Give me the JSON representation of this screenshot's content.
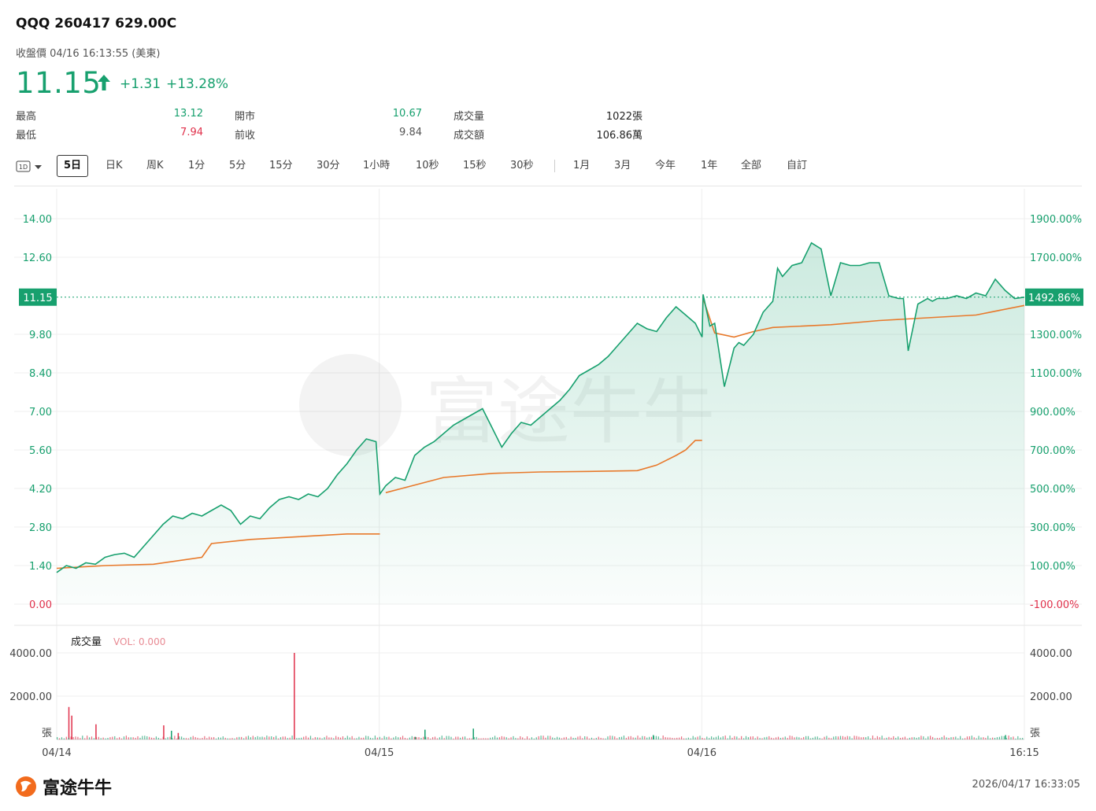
{
  "header": {
    "title": "QQQ 260417 629.00C",
    "subtitle": "收盤價 04/16 16:13:55 (美東)",
    "price": "11.15",
    "change": "+1.31",
    "change_pct": "+13.28%"
  },
  "stats": {
    "high_label": "最高",
    "high_value": "13.12",
    "low_label": "最低",
    "low_value": "7.94",
    "open_label": "開市",
    "open_value": "10.67",
    "prev_close_label": "前收",
    "prev_close_value": "9.84",
    "volume_label": "成交量",
    "volume_value": "1022張",
    "turnover_label": "成交額",
    "turnover_value": "106.86萬"
  },
  "tabs": {
    "selector": "1D",
    "items": [
      "5日",
      "日K",
      "周K",
      "1分",
      "5分",
      "15分",
      "30分",
      "1小時",
      "10秒",
      "15秒",
      "30秒",
      "1月",
      "3月",
      "今年",
      "1年",
      "全部",
      "自訂"
    ],
    "active": "5日"
  },
  "volume_panel": {
    "title": "成交量",
    "vol_label": "VOL: 0.000",
    "unit": "張"
  },
  "footer": {
    "brand": "富途牛牛",
    "timestamp": "2026/04/17 16:33:05"
  },
  "colors": {
    "price_line": "#17a06e",
    "avg_line": "#e8792b",
    "up": "#17a06e",
    "down": "#e0314b",
    "price_tag_bg": "#17a06e"
  },
  "chart_data": {
    "type": "line",
    "x_labels": [
      "04/14",
      "04/15",
      "04/16",
      "16:15"
    ],
    "y_left_ticks": [
      "14.00",
      "12.60",
      "11.15",
      "9.80",
      "8.40",
      "7.00",
      "5.60",
      "4.20",
      "2.80",
      "1.40",
      "0.00"
    ],
    "y_right_ticks": [
      "1900.00%",
      "1700.00%",
      "1492.86%",
      "1300.00%",
      "1100.00%",
      "900.00%",
      "700.00%",
      "500.00%",
      "300.00%",
      "100.00%",
      "-100.00%"
    ],
    "current_price": 11.15,
    "current_pct": "1492.86%",
    "ylim": [
      0,
      14
    ],
    "volume_ticks": [
      "4000.00",
      "2000.00"
    ],
    "volume_ylim": [
      0,
      4000
    ],
    "series": [
      {
        "x": [
          0,
          0.01,
          0.02,
          0.03,
          0.04,
          0.05,
          0.06,
          0.07,
          0.08,
          0.09,
          0.1,
          0.11,
          0.12,
          0.13,
          0.14,
          0.15,
          0.16,
          0.17,
          0.18,
          0.19,
          0.2,
          0.21,
          0.22,
          0.23,
          0.24,
          0.25,
          0.26,
          0.27,
          0.28,
          0.29,
          0.3,
          0.31,
          0.32,
          0.33,
          0.334,
          0.34,
          0.35,
          0.36,
          0.37,
          0.38,
          0.39,
          0.4,
          0.41,
          0.42,
          0.43,
          0.44,
          0.45,
          0.46,
          0.47,
          0.48,
          0.49,
          0.5,
          0.51,
          0.52,
          0.53,
          0.54,
          0.55,
          0.56,
          0.57,
          0.58,
          0.59,
          0.6,
          0.61,
          0.62,
          0.63,
          0.64,
          0.65,
          0.66,
          0.667,
          0.668,
          0.675,
          0.68,
          0.69,
          0.7,
          0.705,
          0.71,
          0.72,
          0.73,
          0.74,
          0.745,
          0.75,
          0.76,
          0.77,
          0.78,
          0.79,
          0.8,
          0.81,
          0.82,
          0.83,
          0.84,
          0.85,
          0.86,
          0.87,
          0.875,
          0.88,
          0.89,
          0.9,
          0.905,
          0.91,
          0.92,
          0.93,
          0.94,
          0.95,
          0.96,
          0.97,
          0.98,
          0.99,
          1.0
        ],
        "y": [
          1.15,
          1.4,
          1.3,
          1.5,
          1.45,
          1.7,
          1.8,
          1.85,
          1.7,
          2.1,
          2.5,
          2.9,
          3.2,
          3.1,
          3.3,
          3.2,
          3.4,
          3.6,
          3.4,
          2.9,
          3.2,
          3.1,
          3.5,
          3.8,
          3.9,
          3.8,
          4.0,
          3.9,
          4.2,
          4.7,
          5.1,
          5.6,
          6.0,
          5.9,
          4.0,
          4.3,
          4.6,
          4.5,
          5.4,
          5.7,
          5.9,
          6.2,
          6.5,
          6.7,
          6.9,
          7.1,
          6.4,
          5.7,
          6.2,
          6.6,
          6.5,
          6.8,
          7.1,
          7.4,
          7.8,
          8.3,
          8.5,
          8.7,
          9.0,
          9.4,
          9.8,
          10.2,
          10.0,
          9.9,
          10.4,
          10.8,
          10.5,
          10.2,
          9.7,
          11.25,
          10.1,
          10.2,
          7.9,
          9.3,
          9.5,
          9.4,
          9.8,
          10.6,
          11.0,
          12.2,
          11.9,
          12.3,
          12.4,
          13.12,
          12.9,
          11.2,
          12.4,
          12.3,
          12.3,
          12.4,
          12.4,
          11.2,
          11.1,
          11.1,
          9.2,
          10.9,
          11.1,
          11.0,
          11.1,
          11.1,
          11.2,
          11.1,
          11.3,
          11.2,
          11.8,
          11.4,
          11.1,
          11.15
        ],
        "color": "#17a06e"
      },
      {
        "x": [
          0,
          0.05,
          0.1,
          0.15,
          0.16,
          0.2,
          0.25,
          0.3,
          0.334,
          0.34,
          0.4,
          0.45,
          0.5,
          0.55,
          0.6,
          0.62,
          0.64,
          0.65,
          0.66,
          0.667,
          0.668,
          0.68,
          0.7,
          0.72,
          0.74,
          0.8,
          0.85,
          0.9,
          0.95,
          1.0
        ],
        "y": [
          1.3,
          1.4,
          1.45,
          1.7,
          2.2,
          2.35,
          2.45,
          2.55,
          2.55,
          4.05,
          4.6,
          4.75,
          4.8,
          4.82,
          4.85,
          5.05,
          5.4,
          5.6,
          5.95,
          5.95,
          11.1,
          9.85,
          9.7,
          9.9,
          10.05,
          10.15,
          10.3,
          10.4,
          10.5,
          10.85
        ],
        "color": "#e8792b"
      }
    ],
    "volume_spikes": [
      {
        "x": 0.012,
        "v": 1500,
        "color": "#e0314b"
      },
      {
        "x": 0.015,
        "v": 1100,
        "color": "#e0314b"
      },
      {
        "x": 0.04,
        "v": 700,
        "color": "#e0314b"
      },
      {
        "x": 0.11,
        "v": 650,
        "color": "#e0314b"
      },
      {
        "x": 0.118,
        "v": 400,
        "color": "#17a06e"
      },
      {
        "x": 0.125,
        "v": 300,
        "color": "#e0314b"
      },
      {
        "x": 0.245,
        "v": 4000,
        "color": "#e0314b"
      },
      {
        "x": 0.37,
        "v": 120,
        "color": "#17a06e"
      },
      {
        "x": 0.38,
        "v": 450,
        "color": "#17a06e"
      },
      {
        "x": 0.43,
        "v": 500,
        "color": "#17a06e"
      },
      {
        "x": 0.616,
        "v": 200,
        "color": "#17a06e"
      },
      {
        "x": 0.98,
        "v": 200,
        "color": "#17a06e"
      }
    ]
  }
}
